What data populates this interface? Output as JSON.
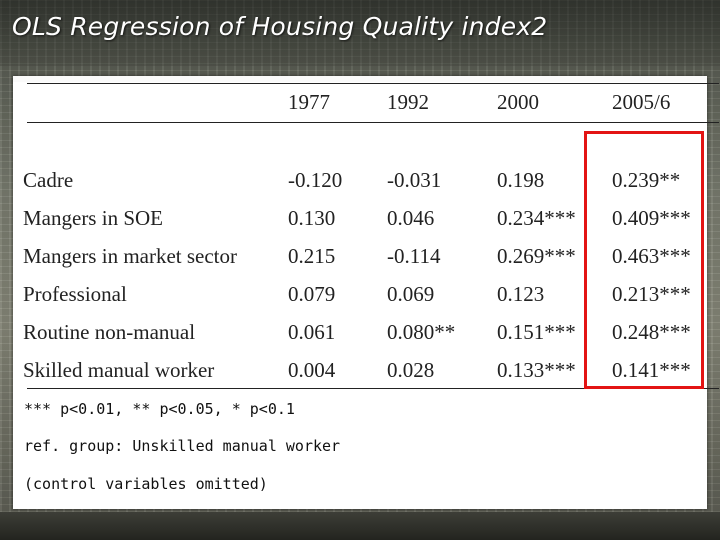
{
  "slide": {
    "title": "OLS Regression of Housing Quality index2",
    "highlight_color": "#e31414"
  },
  "table": {
    "columns": [
      "1977",
      "1992",
      "2000",
      "2005/6"
    ],
    "rows": [
      {
        "label": "Cadre",
        "values": [
          "-0.120",
          "-0.031",
          "0.198",
          "0.239**"
        ]
      },
      {
        "label": "Mangers in SOE",
        "values": [
          "0.130",
          "0.046",
          "0.234***",
          "0.409***"
        ]
      },
      {
        "label": "Mangers in market sector",
        "values": [
          "0.215",
          "-0.114",
          "0.269***",
          "0.463***"
        ]
      },
      {
        "label": "Professional",
        "values": [
          "0.079",
          "0.069",
          "0.123",
          "0.213***"
        ]
      },
      {
        "label": "Routine non-manual",
        "values": [
          "0.061",
          "0.080**",
          "0.151***",
          "0.248***"
        ]
      },
      {
        "label": "Skilled manual worker",
        "values": [
          "0.004",
          "0.028",
          "0.133***",
          "0.141***"
        ]
      }
    ]
  },
  "notes": [
    "*** p<0.01, ** p<0.05, * p<0.1",
    "ref. group: Unskilled manual worker",
    "(control variables omitted)"
  ]
}
